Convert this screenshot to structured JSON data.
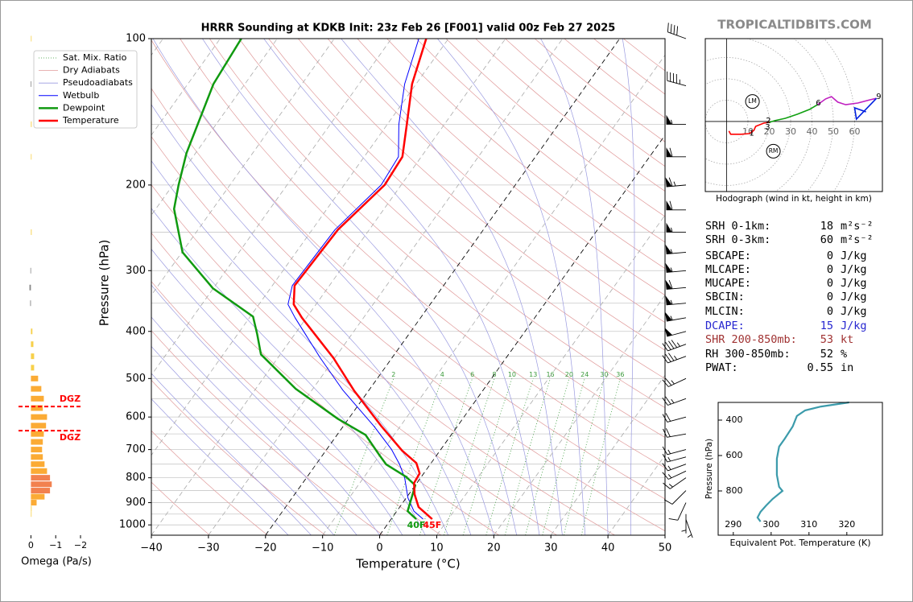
{
  "logo": "TROPICALTIDBITS.COM",
  "parameters": [
    {
      "label": "SRH 0-1km:",
      "value": 18,
      "unit": "m²s⁻²",
      "color": "#000000"
    },
    {
      "label": "SRH 0-3km:",
      "value": 60,
      "unit": "m²s⁻²",
      "color": "#000000"
    },
    {
      "label": "SBCAPE:",
      "value": 0,
      "unit": "J/kg",
      "color": "#000000"
    },
    {
      "label": "MLCAPE:",
      "value": 0,
      "unit": "J/kg",
      "color": "#000000"
    },
    {
      "label": "MUCAPE:",
      "value": 0,
      "unit": "J/kg",
      "color": "#000000"
    },
    {
      "label": "SBCIN:",
      "value": 0,
      "unit": "J/kg",
      "color": "#000000"
    },
    {
      "label": "MLCIN:",
      "value": 0,
      "unit": "J/kg",
      "color": "#000000"
    },
    {
      "label": "DCAPE:",
      "value": 15,
      "unit": "J/kg",
      "color": "#2626d0"
    },
    {
      "label": "SHR 200-850mb:",
      "value": 53,
      "unit": "kt",
      "color": "#a03232"
    },
    {
      "label": "RH 300-850mb:",
      "value": 52,
      "unit": "%",
      "color": "#000000"
    },
    {
      "label": "PWAT:",
      "value": 0.55,
      "unit": "in",
      "color": "#000000"
    }
  ],
  "chart_data": [
    {
      "type": "skewt",
      "title": "HRRR Sounding at KDKB Init: 23z Feb 26 [F001] valid 00z Feb 27 2025",
      "xlabel": "Temperature (°C)",
      "ylabel": "Pressure (hPa)",
      "xlim": [
        -40,
        50
      ],
      "xticks": [
        {
          "value": -40,
          "label": "−40"
        },
        {
          "value": -30,
          "label": "−30"
        },
        {
          "value": -20,
          "label": "−20"
        },
        {
          "value": -10,
          "label": "−10"
        },
        0,
        10,
        20,
        30,
        40,
        50
      ],
      "ylim": [
        1050,
        100
      ],
      "log_y": true,
      "yticks": [
        100,
        200,
        300,
        400,
        500,
        600,
        700,
        800,
        900,
        1000
      ],
      "minor_yticks": [
        150,
        250,
        350,
        450,
        550,
        650,
        750,
        850,
        950
      ],
      "highlight_isotherms": [
        -20,
        0
      ],
      "mixing_ratio_labels": [
        2,
        4,
        6,
        8,
        10,
        13,
        16,
        20,
        24,
        30,
        36
      ],
      "legend": "upper left",
      "background": [
        {
          "name": "Sat. Mix. Ratio",
          "color": "#3a9a3a"
        },
        {
          "name": "Dry Adiabats",
          "color": "#e09a9a"
        },
        {
          "name": "Pseudoadiabats",
          "color": "#9a9ae0"
        }
      ],
      "series": [
        {
          "name": "Wetbulb",
          "color": "#0000ff",
          "width": 1,
          "p": [
            973,
            937,
            880,
            800,
            750,
            700,
            628,
            529,
            454,
            375,
            352,
            322,
            247,
            200,
            175,
            150,
            124,
            100
          ],
          "values": [
            5.6,
            3.0,
            0.3,
            -2.8,
            -5.4,
            -8.6,
            -14.5,
            -24.5,
            -32.5,
            -42.0,
            -44.9,
            -46.5,
            -46.0,
            -43.5,
            -44.0,
            -48.0,
            -52.0,
            -55.2
          ]
        },
        {
          "name": "Dewpoint",
          "color": "#109a10",
          "width": 2.5,
          "surface_label": "40F",
          "p": [
            973,
            937,
            829,
            796,
            751,
            718,
            653,
            605,
            525,
            446,
            405,
            373,
            326,
            275,
            224,
            200,
            172,
            124,
            100
          ],
          "values": [
            4.4,
            1.9,
            0.0,
            -2.7,
            -7.7,
            -10.1,
            -15.0,
            -21.9,
            -33.0,
            -43.4,
            -46.6,
            -49.5,
            -60.1,
            -69.9,
            -76.8,
            -79.0,
            -81.6,
            -85.5,
            -86.3
          ]
        },
        {
          "name": "Temperature",
          "color": "#ff0000",
          "width": 2.5,
          "surface_label": "45F",
          "p": [
            973,
            919,
            865,
            820,
            784,
            746,
            704,
            628,
            529,
            454,
            375,
            352,
            322,
            247,
            200,
            175,
            150,
            124,
            100
          ],
          "values": [
            7.2,
            3.3,
            1.0,
            -0.5,
            -0.7,
            -2.6,
            -6.6,
            -13.2,
            -22.6,
            -30.2,
            -40.8,
            -43.9,
            -46.1,
            -45.5,
            -42.9,
            -43.3,
            -46.6,
            -50.7,
            -53.9
          ]
        }
      ],
      "winds": {
        "p": [
          100,
          125,
          150,
          175,
          200,
          225,
          250,
          275,
          300,
          325,
          350,
          375,
          400,
          425,
          450,
          500,
          550,
          600,
          650,
          700,
          725,
          750,
          775,
          800,
          850,
          900,
          950,
          975
        ],
        "speed": [
          40,
          45,
          55,
          60,
          65,
          60,
          55,
          55,
          55,
          60,
          55,
          55,
          50,
          45,
          35,
          25,
          25,
          20,
          20,
          15,
          15,
          15,
          15,
          15,
          10,
          10,
          5,
          5
        ],
        "direction": [
          290,
          285,
          270,
          270,
          265,
          270,
          270,
          265,
          265,
          265,
          265,
          260,
          255,
          250,
          250,
          245,
          250,
          255,
          260,
          255,
          255,
          250,
          245,
          235,
          225,
          205,
          180,
          160
        ]
      }
    },
    {
      "type": "omega",
      "xlabel": "Omega (Pa/s)",
      "xlim": [
        0.5,
        -2
      ],
      "xticks": [
        0,
        {
          "value": -1,
          "label": "−1"
        },
        {
          "value": -2,
          "label": "−2"
        }
      ],
      "ylim": [
        1050,
        100
      ],
      "p": [
        100,
        124,
        150,
        175,
        250,
        300,
        325,
        350,
        400,
        425,
        450,
        475,
        500,
        525,
        550,
        575,
        600,
        625,
        650,
        675,
        700,
        725,
        750,
        775,
        800,
        825,
        850,
        875,
        900,
        925,
        950
      ],
      "values": [
        -0.02,
        0.01,
        -0.03,
        -0.02,
        -0.03,
        0.02,
        0.06,
        0.03,
        -0.06,
        -0.1,
        -0.13,
        -0.13,
        -0.29,
        -0.42,
        -0.52,
        -0.48,
        -0.65,
        -0.61,
        -0.52,
        -0.48,
        -0.45,
        -0.48,
        -0.55,
        -0.65,
        -0.77,
        -0.84,
        -0.77,
        -0.55,
        -0.23,
        -0.03,
        -0.01
      ],
      "colors": [
        "#f7d04a",
        "#888888",
        "#f7d04a",
        "#f7d04a",
        "#f7d04a",
        "#888888",
        "#888888",
        "#888888",
        "#f7d04a",
        "#f7d04a",
        "#f7d04a",
        "#f7d04a",
        "#fbab35",
        "#fbab35",
        "#fbab35",
        "#fbab35",
        "#fbab35",
        "#fbab35",
        "#fbab35",
        "#fbab35",
        "#fbab35",
        "#fbab35",
        "#fbab35",
        "#fbab35",
        "#f2814f",
        "#f2814f",
        "#f2814f",
        "#fbab35",
        "#fbab35",
        "#f7d04a",
        "#f7d04a"
      ],
      "dgz_pressures": [
        571,
        640
      ],
      "dgz_labels": [
        "DGZ",
        "DGZ"
      ],
      "dgz_color": "#ff0000"
    },
    {
      "type": "hodograph",
      "caption": "Hodograph (wind in kt, height in km)",
      "xlim": [
        -10,
        73
      ],
      "ylim": [
        -33,
        39
      ],
      "ring_labels": [
        10,
        20,
        30,
        40,
        50,
        60
      ],
      "series": [
        {
          "color": "#ff0000",
          "u": [
            1.1,
            1.9,
            6.8,
            10.6,
            12.8,
            13.6,
            17.4,
            20.0
          ],
          "values": [
            -4.5,
            -6.0,
            -6.0,
            -5.7,
            -4.2,
            -2.3,
            -0.8,
            -0.4
          ]
        },
        {
          "color": "#10a010",
          "u": [
            20.0,
            22.6,
            27.5,
            33.2,
            38.9,
            42.6
          ],
          "values": [
            -0.4,
            0.4,
            1.5,
            3.4,
            5.7,
            7.9
          ]
        },
        {
          "color": "#c020c0",
          "u": [
            42.6,
            46.4,
            49.1,
            52.1,
            55.8,
            61.5,
            67.2,
            70.2
          ],
          "values": [
            7.9,
            10.6,
            11.7,
            9.1,
            7.9,
            8.7,
            10.2,
            10.9
          ]
        },
        {
          "color": "#0020e0",
          "u": [
            70.2,
            60.8,
            60.0,
            65.3
          ],
          "values": [
            10.9,
            1.1,
            6.4,
            4.5
          ]
        }
      ],
      "heights": [
        {
          "label": "1",
          "u": 11.7,
          "v": -5.5
        },
        {
          "label": "2",
          "u": 19.6,
          "v": 0.4
        },
        {
          "label": "3",
          "u": 19.2,
          "v": -2.6
        },
        {
          "label": "6",
          "u": 43.0,
          "v": 8.7
        },
        {
          "label": "9",
          "u": 71.3,
          "v": 11.7
        }
      ],
      "storm_motion": [
        {
          "label": "LM",
          "u": 12.1,
          "v": 9.4
        },
        {
          "label": "RM",
          "u": 21.9,
          "v": -14.0
        }
      ]
    },
    {
      "type": "line",
      "xlabel": "Equivalent Pot. Temperature (K)",
      "ylabel": "Pressure (hPa)",
      "xlim": [
        286,
        329.4
      ],
      "xticks": [
        290,
        300,
        310,
        320
      ],
      "ylim": [
        1050,
        300
      ],
      "yticks": [
        400,
        600,
        800
      ],
      "color": "#3c9bab",
      "p": [
        300,
        323,
        345,
        377,
        436,
        505,
        550,
        618,
        709,
        777,
        800,
        845,
        882,
        918,
        950,
        973
      ],
      "values": [
        320.6,
        313.2,
        309.0,
        306.8,
        305.7,
        303.6,
        302.1,
        301.5,
        301.5,
        302.1,
        303.0,
        300.4,
        298.7,
        297.2,
        296.4,
        297.2
      ]
    }
  ]
}
